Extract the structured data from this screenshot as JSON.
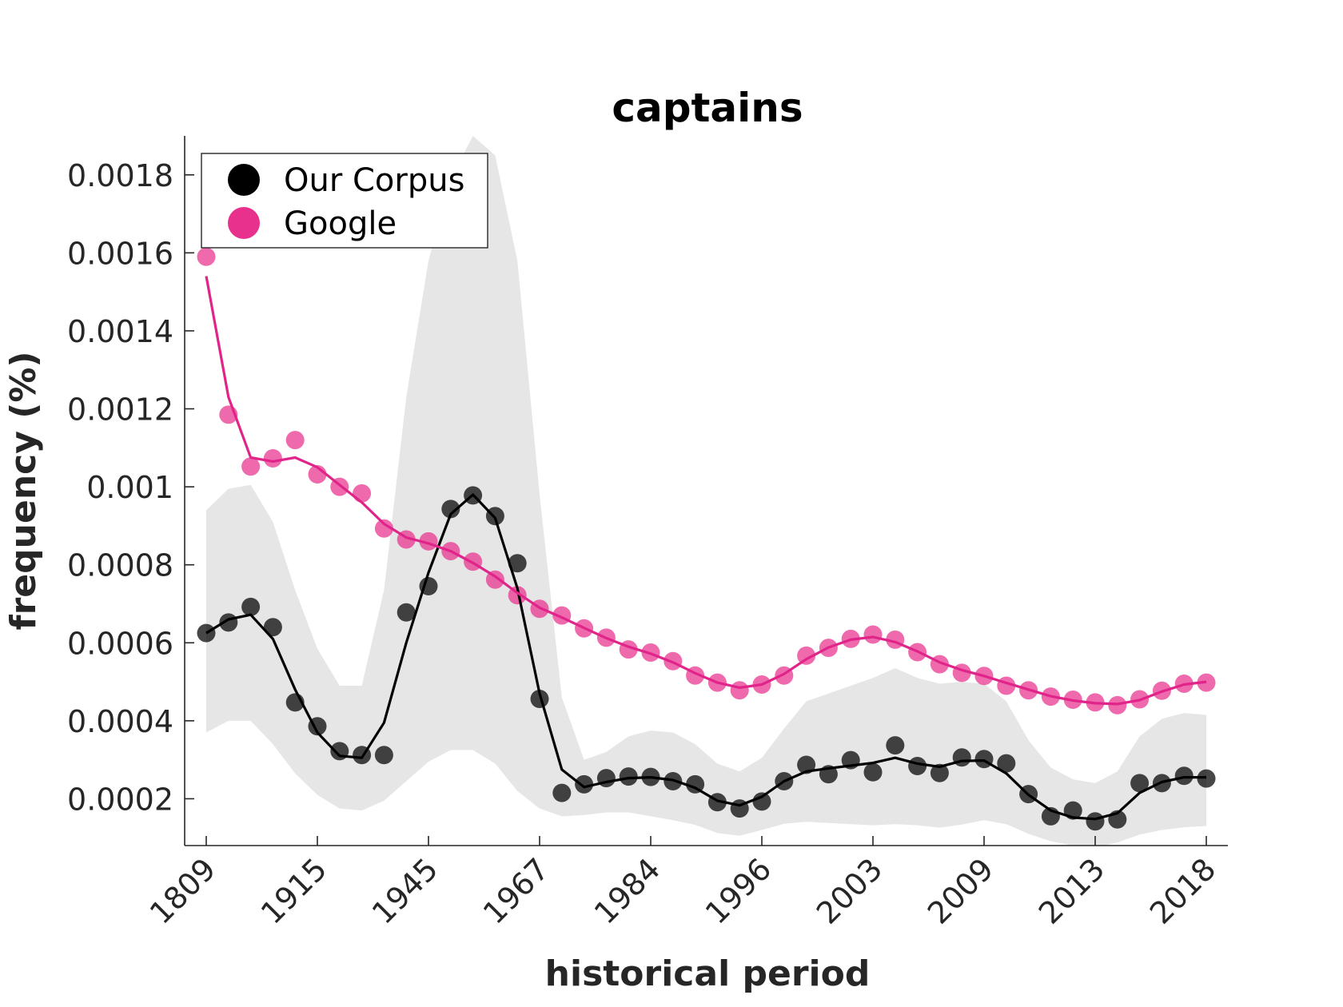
{
  "chart_data": {
    "type": "line",
    "title": "captains",
    "xlabel": "historical period",
    "ylabel": "frequency (%)",
    "x_tick_labels": [
      "1809",
      "1915",
      "1945",
      "1967",
      "1984",
      "1996",
      "2003",
      "2009",
      "2013",
      "2018"
    ],
    "y_ticks": [
      0.0002,
      0.0004,
      0.0006,
      0.0008,
      0.001,
      0.0012,
      0.0014,
      0.0016,
      0.0018
    ],
    "y_tick_labels": [
      "0.0002",
      "0.0004",
      "0.0006",
      "0.0008",
      "0.001",
      "0.0012",
      "0.0014",
      "0.0016",
      "0.0018"
    ],
    "ylim": [
      8e-05,
      0.0019
    ],
    "x_index_range": [
      0,
      45
    ],
    "legend_location": "top-left",
    "grid": false,
    "series": [
      {
        "name": "Our Corpus",
        "color": "#333333",
        "points": [
          0.000625,
          0.000652,
          0.000692,
          0.00064,
          0.000447,
          0.000386,
          0.000322,
          0.000312,
          0.000312,
          0.000678,
          0.000745,
          0.000943,
          0.000978,
          0.000925,
          0.000804,
          0.000456,
          0.000215,
          0.000237,
          0.000253,
          0.000257,
          0.000256,
          0.000245,
          0.000237,
          0.000191,
          0.000175,
          0.000193,
          0.000245,
          0.000287,
          0.000263,
          0.000299,
          0.000268,
          0.000337,
          0.000284,
          0.000266,
          0.000306,
          0.000302,
          0.000291,
          0.000212,
          0.000155,
          0.00017,
          0.000142,
          0.000147,
          0.00024,
          0.00024,
          0.000259,
          0.000252
        ],
        "smooth": [
          0.000625,
          0.00066,
          0.000672,
          0.00061,
          0.00048,
          0.00037,
          0.00031,
          0.000305,
          0.000395,
          0.0006,
          0.00078,
          0.00093,
          0.00098,
          0.00092,
          0.00074,
          0.00047,
          0.000275,
          0.00023,
          0.000243,
          0.000253,
          0.000255,
          0.000248,
          0.000228,
          0.000195,
          0.000183,
          0.000205,
          0.000245,
          0.00027,
          0.000278,
          0.000285,
          0.000292,
          0.000305,
          0.00029,
          0.000282,
          0.000297,
          0.000298,
          0.000265,
          0.00021,
          0.00017,
          0.000152,
          0.000148,
          0.000163,
          0.000215,
          0.000243,
          0.000255,
          0.000255
        ],
        "band_upper": [
          0.00094,
          0.000995,
          0.001005,
          0.00091,
          0.000735,
          0.000585,
          0.00049,
          0.00049,
          0.000735,
          0.00123,
          0.00158,
          0.00179,
          0.0019,
          0.00185,
          0.00158,
          0.00098,
          0.00046,
          0.0003,
          0.00032,
          0.00036,
          0.000375,
          0.00037,
          0.00034,
          0.00029,
          0.00027,
          0.000305,
          0.00038,
          0.00045,
          0.00047,
          0.00049,
          0.00051,
          0.000535,
          0.00051,
          0.000495,
          0.0005,
          0.000495,
          0.00045,
          0.00035,
          0.00028,
          0.00025,
          0.00024,
          0.00027,
          0.00036,
          0.000405,
          0.00042,
          0.000415
        ],
        "band_lower": [
          0.00037,
          0.0004,
          0.0004,
          0.00034,
          0.000265,
          0.00021,
          0.000175,
          0.00017,
          0.000195,
          0.000245,
          0.000295,
          0.000325,
          0.000325,
          0.00029,
          0.00022,
          0.000175,
          0.000155,
          0.000158,
          0.000165,
          0.000165,
          0.000155,
          0.000145,
          0.000133,
          0.000112,
          0.000105,
          0.00012,
          0.000136,
          0.000141,
          0.000138,
          0.000135,
          0.000132,
          0.000135,
          0.000132,
          0.000126,
          0.000134,
          0.000145,
          0.000135,
          0.00011,
          9.1e-05,
          8e-05,
          7.5e-05,
          8.8e-05,
          0.000108,
          0.00012,
          0.000127,
          0.00013
        ]
      },
      {
        "name": "Google",
        "color": "#e8318c",
        "points": [
          0.00159,
          0.001185,
          0.001052,
          0.001073,
          0.00112,
          0.001032,
          0.001,
          0.000983,
          0.000893,
          0.000865,
          0.00086,
          0.000835,
          0.000808,
          0.000762,
          0.000722,
          0.000687,
          0.00067,
          0.000637,
          0.000613,
          0.000583,
          0.000575,
          0.000553,
          0.000516,
          0.000498,
          0.000478,
          0.000493,
          0.000516,
          0.000567,
          0.000587,
          0.00061,
          0.000621,
          0.000608,
          0.000576,
          0.000545,
          0.000523,
          0.000515,
          0.00049,
          0.000478,
          0.000462,
          0.000454,
          0.000447,
          0.00044,
          0.000455,
          0.000477,
          0.000495,
          0.000498
        ],
        "smooth": [
          0.00154,
          0.00123,
          0.001075,
          0.001065,
          0.001075,
          0.00105,
          0.001005,
          0.00096,
          0.000905,
          0.00087,
          0.000855,
          0.000835,
          0.000805,
          0.00077,
          0.000728,
          0.00069,
          0.000665,
          0.000638,
          0.000612,
          0.00059,
          0.000572,
          0.00055,
          0.000522,
          0.000498,
          0.000485,
          0.000493,
          0.00052,
          0.000558,
          0.000588,
          0.000608,
          0.000615,
          0.000602,
          0.000578,
          0.00055,
          0.00053,
          0.000515,
          0.000497,
          0.00048,
          0.000463,
          0.000452,
          0.000445,
          0.000443,
          0.000453,
          0.000475,
          0.000493,
          0.0005
        ]
      }
    ]
  }
}
